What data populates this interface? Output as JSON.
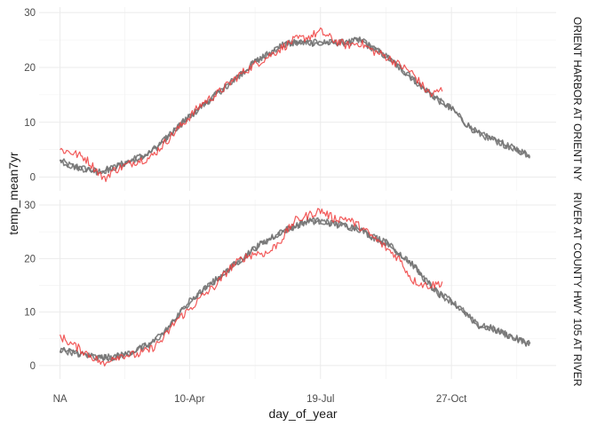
{
  "chart_data": {
    "type": "line",
    "xlabel": "day_of_year",
    "ylabel": "temp_mean7yr",
    "x_ticks": [
      {
        "day": 1,
        "label": "NA"
      },
      {
        "day": 100,
        "label": "10-Apr"
      },
      {
        "day": 200,
        "label": "19-Jul"
      },
      {
        "day": 300,
        "label": "27-Oct"
      }
    ],
    "xlim": [
      -15,
      380
    ],
    "grid": true,
    "colors": {
      "grey_series": "#737373",
      "red_series": "#f03c3c"
    },
    "panels": [
      {
        "strip_label": "ORIENT HARBOR AT ORIENT NY",
        "ylim": [
          -2.5,
          31
        ],
        "y_ticks": [
          0,
          10,
          20,
          30
        ],
        "series": [
          {
            "color": "grey_series",
            "x": [
              1,
              10,
              20,
              30,
              40,
              50,
              60,
              70,
              80,
              90,
              100,
              110,
              120,
              130,
              140,
              150,
              160,
              170,
              180,
              190,
              200,
              210,
              220,
              230,
              240,
              250,
              260,
              270,
              280,
              290,
              300,
              310,
              320,
              330,
              340,
              350,
              360
            ],
            "y": [
              3,
              2,
              1.5,
              1,
              1.5,
              2.5,
              3.5,
              4.5,
              6.5,
              9,
              11,
              13,
              15,
              17,
              19,
              21,
              22.5,
              24,
              24.5,
              24.5,
              24.5,
              24.5,
              24.5,
              25,
              23.5,
              22,
              20,
              18,
              16,
              14,
              12.5,
              10,
              8,
              7,
              6,
              5,
              4
            ]
          },
          {
            "color": "red_series",
            "x": [
              1,
              10,
              20,
              30,
              35,
              40,
              50,
              60,
              70,
              80,
              90,
              100,
              110,
              120,
              130,
              140,
              150,
              160,
              170,
              180,
              190,
              200,
              210,
              220,
              230,
              240,
              250,
              260,
              270,
              280,
              285,
              293
            ],
            "y": [
              5,
              4.5,
              3.5,
              1,
              -0.5,
              1,
              2,
              3,
              3.5,
              6,
              8.5,
              11,
              13.5,
              15,
              17,
              19,
              20.5,
              22,
              23.5,
              25,
              25.5,
              26.5,
              25,
              24,
              24.5,
              23,
              22,
              20.5,
              19,
              16,
              15,
              16
            ]
          }
        ]
      },
      {
        "strip_label": "RIVER AT COUNTY HWY 105 AT RIVER",
        "ylim": [
          -2.5,
          31
        ],
        "y_ticks": [
          0,
          10,
          20,
          30
        ],
        "series": [
          {
            "color": "grey_series",
            "x": [
              1,
              10,
              20,
              30,
              40,
              50,
              60,
              70,
              80,
              90,
              100,
              110,
              120,
              130,
              140,
              150,
              160,
              170,
              180,
              190,
              200,
              210,
              220,
              230,
              240,
              250,
              260,
              270,
              280,
              290,
              300,
              310,
              320,
              330,
              340,
              350,
              360
            ],
            "y": [
              3,
              2.5,
              2,
              1.5,
              1.5,
              2,
              3,
              4,
              6,
              9,
              12,
              14,
              16,
              18,
              20,
              22,
              23.5,
              25,
              26,
              27,
              27,
              26.5,
              26,
              25.5,
              24,
              23,
              21,
              19,
              16,
              13.5,
              12,
              10,
              7.5,
              7,
              6,
              5,
              4
            ]
          },
          {
            "color": "red_series",
            "x": [
              1,
              10,
              20,
              30,
              35,
              40,
              50,
              60,
              70,
              80,
              90,
              100,
              110,
              120,
              130,
              140,
              150,
              160,
              170,
              180,
              190,
              200,
              210,
              220,
              230,
              240,
              250,
              260,
              270,
              280,
              285,
              293
            ],
            "y": [
              5.5,
              4,
              2.5,
              1,
              0,
              1.5,
              2,
              2,
              3,
              5,
              8.5,
              10.5,
              13,
              15,
              18,
              20,
              21,
              21,
              23.5,
              27,
              28,
              29,
              27.5,
              27.5,
              26,
              24,
              22,
              20,
              16,
              15,
              15,
              15.5
            ]
          }
        ]
      }
    ]
  }
}
